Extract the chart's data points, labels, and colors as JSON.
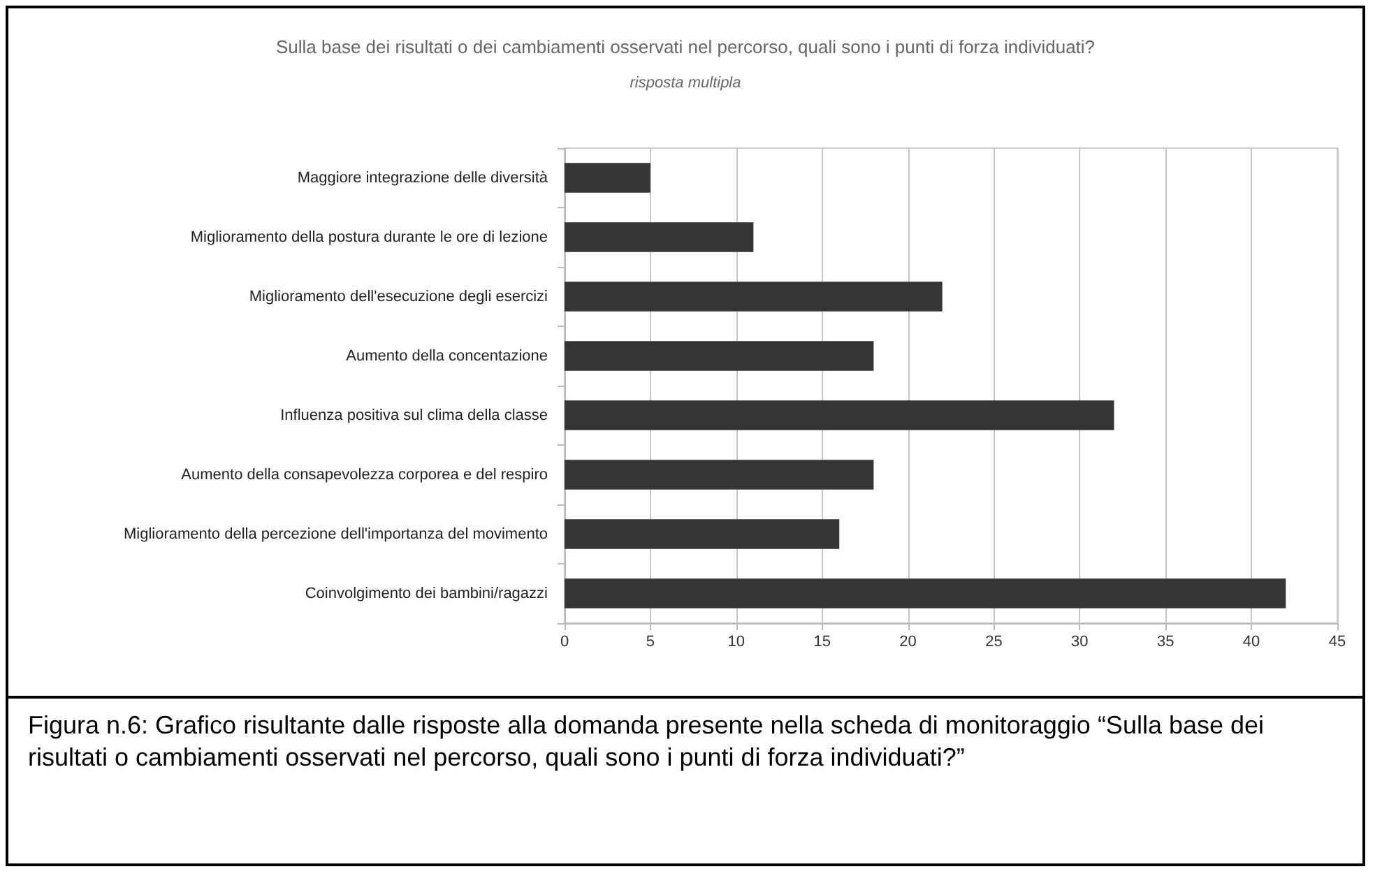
{
  "chart_data": {
    "type": "bar",
    "orientation": "horizontal",
    "title": "Sulla base dei risultati o dei cambiamenti osservati nel percorso, quali sono i punti di forza individuati?",
    "subtitle": "risposta multipla",
    "categories": [
      "Maggiore integrazione delle diversità",
      "Miglioramento della postura durante le ore di lezione",
      "Miglioramento dell'esecuzione degli esercizi",
      "Aumento della concentazione",
      "Influenza positiva sul clima della classe",
      "Aumento della consapevolezza corporea e del respiro",
      "Miglioramento della percezione dell'importanza del movimento",
      "Coinvolgimento dei bambini/ragazzi"
    ],
    "values": [
      5,
      11,
      22,
      18,
      32,
      18,
      16,
      42
    ],
    "color": "#353535",
    "xlim": [
      0,
      45
    ],
    "xticks": [
      0,
      5,
      10,
      15,
      20,
      25,
      30,
      35,
      40,
      45
    ],
    "grid": "x",
    "annotations": [
      "Figura n.6: Grafico risultante dalle risposte alla domanda presente nella scheda di monitoraggio “Sulla base dei risultati o cambiamenti osservati nel percorso, quali sono i punti di forza individuati?”"
    ]
  }
}
